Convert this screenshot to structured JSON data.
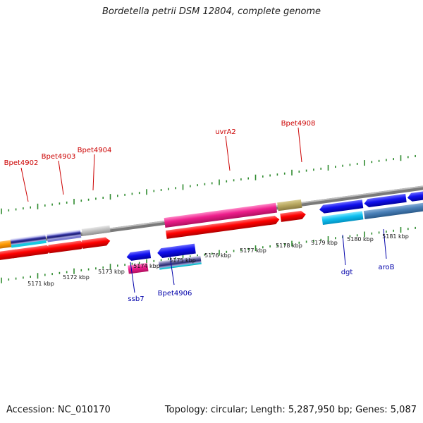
{
  "title": "Bordetella petrii DSM 12804, complete genome",
  "accession_label": "Accession: NC_010170",
  "topology_label": "Topology: circular; Length: 5,287,950 bp; Genes: 5,087",
  "colors": {
    "backbone": "#8a8a8a",
    "tick": "#2e8b2e",
    "upper_gene_label": "#cc0000",
    "lower_gene_label": "#0000aa"
  },
  "upper_gene_labels": [
    {
      "id": "bpet4902",
      "text": "Bpet4902"
    },
    {
      "id": "bpet4903",
      "text": "Bpet4903"
    },
    {
      "id": "bpet4904",
      "text": "Bpet4904"
    },
    {
      "id": "uvra2",
      "text": "uvrA2"
    },
    {
      "id": "bpet4908",
      "text": "Bpet4908"
    }
  ],
  "lower_gene_labels": [
    {
      "id": "ssb7",
      "text": "ssb7"
    },
    {
      "id": "bpet4906",
      "text": "Bpet4906"
    },
    {
      "id": "dgt",
      "text": "dgt"
    },
    {
      "id": "arob",
      "text": "aroB"
    }
  ],
  "position_labels": [
    "5171 kbp",
    "5172 kbp",
    "5173 kbp",
    "5174 kbp",
    "5175 kbp",
    "5176 kbp",
    "5177 kbp",
    "5178 kbp",
    "5179 kbp",
    "5180 kbp",
    "5181 kbp"
  ]
}
